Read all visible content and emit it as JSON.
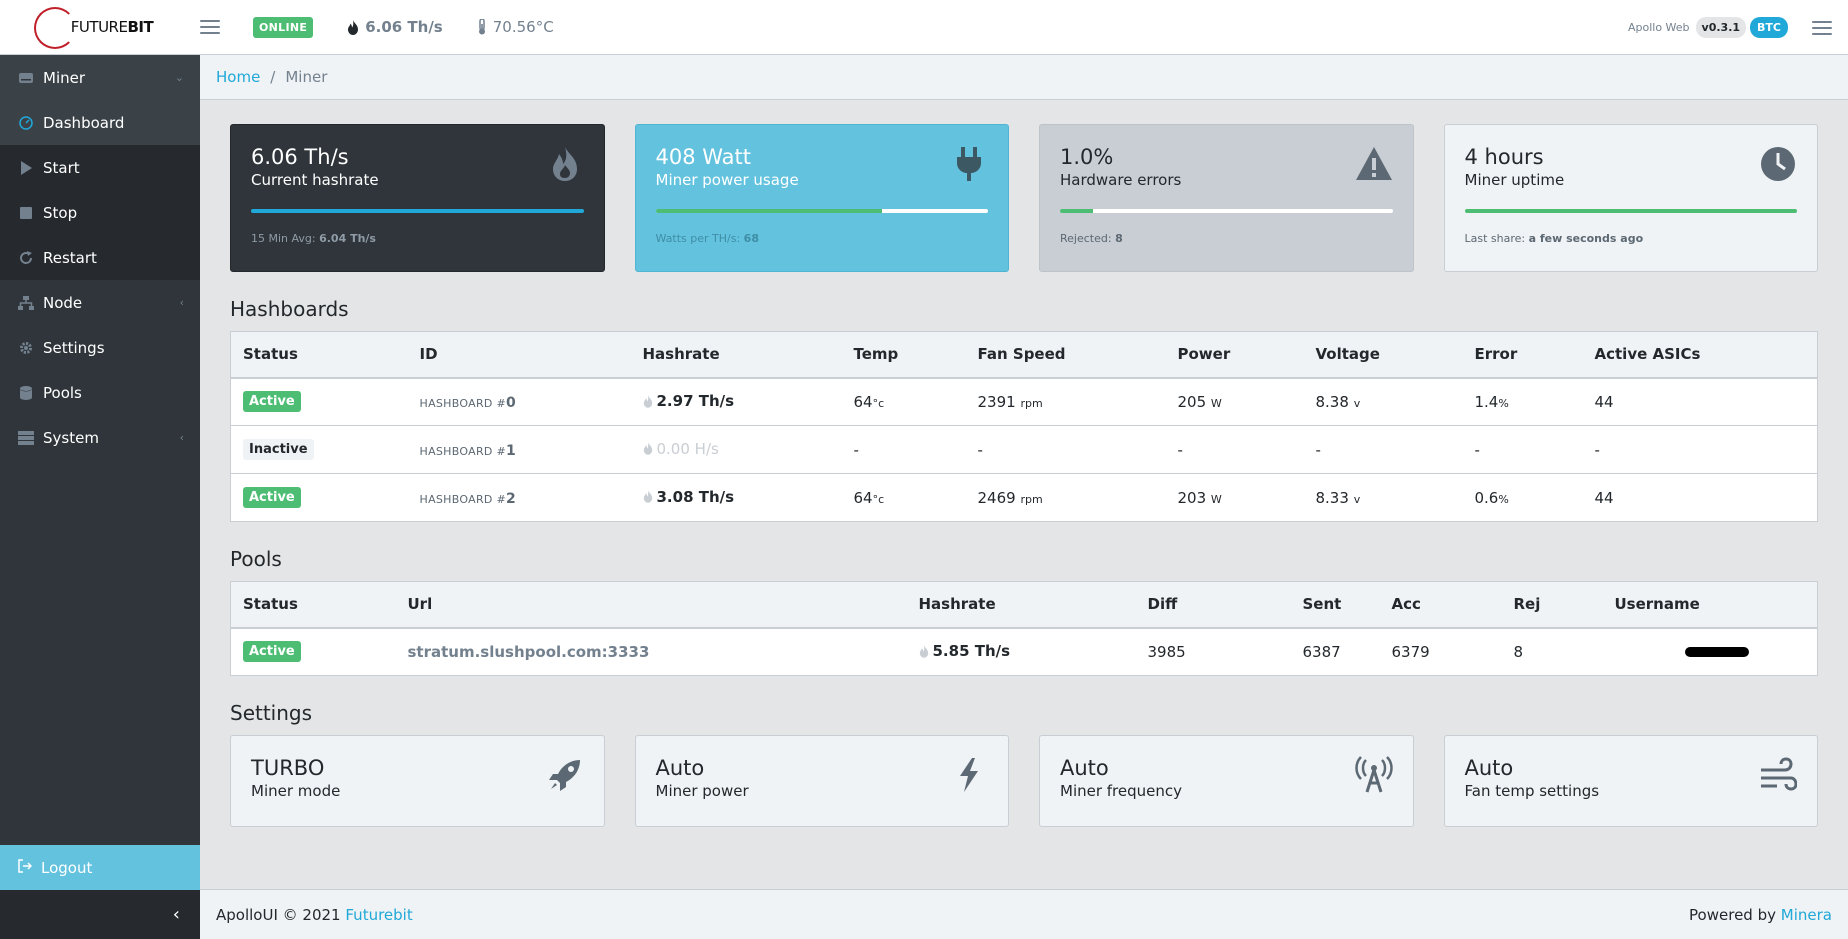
{
  "header": {
    "logo_prefix": "FUTURE",
    "logo_suffix": "BIT",
    "status_badge": "ONLINE",
    "hashrate": "6.06 Th/s",
    "temp": "70.56°C",
    "app_name": "Apollo Web",
    "version": "v0.3.1",
    "coin": "BTC"
  },
  "sidebar": {
    "items": [
      {
        "label": "Miner",
        "icon": "drive-icon"
      },
      {
        "label": "Dashboard",
        "icon": "speedometer-icon"
      },
      {
        "label": "Start",
        "icon": "play-icon"
      },
      {
        "label": "Stop",
        "icon": "stop-icon"
      },
      {
        "label": "Restart",
        "icon": "restart-icon"
      },
      {
        "label": "Node",
        "icon": "network-icon"
      },
      {
        "label": "Settings",
        "icon": "gear-icon"
      },
      {
        "label": "Pools",
        "icon": "database-icon"
      },
      {
        "label": "System",
        "icon": "server-icon"
      }
    ],
    "logout": "Logout"
  },
  "breadcrumb": {
    "home": "Home",
    "current": "Miner"
  },
  "cards": [
    {
      "value": "6.06 Th/s",
      "label": "Current hashrate",
      "foot_label": "15 Min Avg:",
      "foot_value": "6.04 Th/s",
      "progress": 1.0
    },
    {
      "value": "408 Watt",
      "label": "Miner power usage",
      "foot_label": "Watts per TH/s:",
      "foot_value": "68",
      "progress": 0.68
    },
    {
      "value": "1.0%",
      "label": "Hardware errors",
      "foot_label": "Rejected:",
      "foot_value": "8",
      "progress": 0.1
    },
    {
      "value": "4 hours",
      "label": "Miner uptime",
      "foot_label": "Last share:",
      "foot_value": "a few seconds ago",
      "progress": 1.0
    }
  ],
  "hashboards": {
    "title": "Hashboards",
    "headers": [
      "Status",
      "ID",
      "Hashrate",
      "Temp",
      "Fan Speed",
      "Power",
      "Voltage",
      "Error",
      "Active ASICs"
    ],
    "rows": [
      {
        "status": "Active",
        "id_prefix": "HASHBOARD #",
        "id_num": "0",
        "hashrate": "2.97 Th/s",
        "temp": "64",
        "temp_unit": "°c",
        "fan": "2391",
        "fan_unit": "rpm",
        "power": "205",
        "power_unit": "W",
        "voltage": "8.38",
        "voltage_unit": "v",
        "error": "1.4",
        "error_unit": "%",
        "asics": "44"
      },
      {
        "status": "Inactive",
        "id_prefix": "HASHBOARD #",
        "id_num": "1",
        "hashrate": "0.00 H/s",
        "temp": "-",
        "fan": "-",
        "power": "-",
        "voltage": "-",
        "error": "-",
        "asics": "-"
      },
      {
        "status": "Active",
        "id_prefix": "HASHBOARD #",
        "id_num": "2",
        "hashrate": "3.08 Th/s",
        "temp": "64",
        "temp_unit": "°c",
        "fan": "2469",
        "fan_unit": "rpm",
        "power": "203",
        "power_unit": "W",
        "voltage": "8.33",
        "voltage_unit": "v",
        "error": "0.6",
        "error_unit": "%",
        "asics": "44"
      }
    ]
  },
  "pools": {
    "title": "Pools",
    "headers": [
      "Status",
      "Url",
      "Hashrate",
      "Diff",
      "Sent",
      "Acc",
      "Rej",
      "Username"
    ],
    "rows": [
      {
        "status": "Active",
        "url": "stratum.slushpool.com:3333",
        "hashrate": "5.85 Th/s",
        "diff": "3985",
        "sent": "6387",
        "acc": "6379",
        "rej": "8"
      }
    ]
  },
  "settings": {
    "title": "Settings",
    "cards": [
      {
        "value": "TURBO",
        "label": "Miner mode",
        "icon": "rocket-icon"
      },
      {
        "value": "Auto",
        "label": "Miner power",
        "icon": "bolt-icon"
      },
      {
        "value": "Auto",
        "label": "Miner frequency",
        "icon": "broadcast-icon"
      },
      {
        "value": "Auto",
        "label": "Fan temp settings",
        "icon": "wind-icon"
      }
    ]
  },
  "footer": {
    "left_text": "ApolloUI © 2021",
    "left_link": "Futurebit",
    "right_text": "Powered by",
    "right_link": "Minera"
  },
  "colors": {
    "primary": "#20a8d8",
    "success": "#4dbd74",
    "info": "#63c2de",
    "dark": "#2f353a"
  }
}
